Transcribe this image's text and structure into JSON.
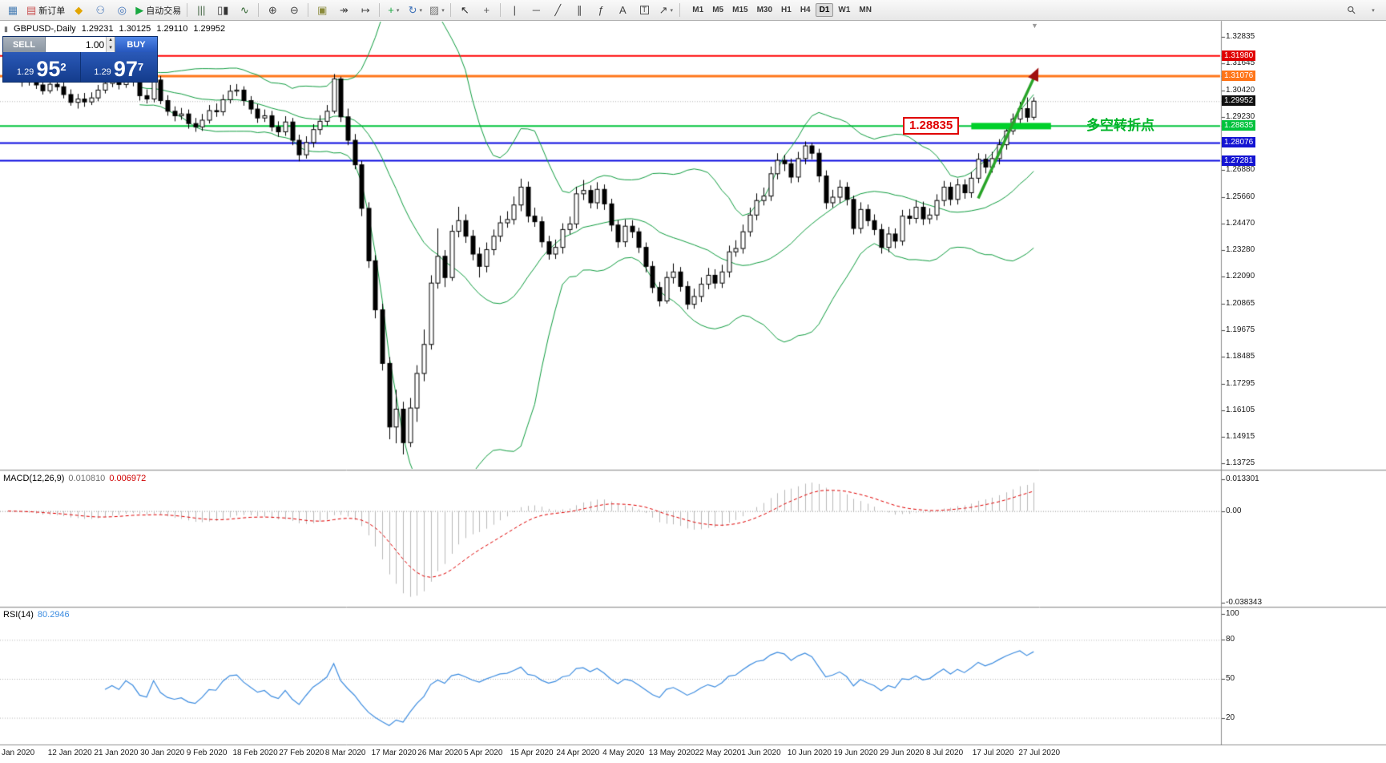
{
  "toolbar": {
    "items": [
      {
        "name": "new-chart-button",
        "glyph": "▦",
        "color": "#4a7fb5"
      },
      {
        "name": "new-order-button",
        "glyph": "▤",
        "color": "#c94f4f",
        "label": "新订单"
      },
      {
        "name": "metaeditor-button",
        "glyph": "◆",
        "color": "#e2a500"
      },
      {
        "name": "community-button",
        "glyph": "⚇",
        "color": "#3f72b8"
      },
      {
        "name": "options-button",
        "glyph": "◎",
        "color": "#3f72b8"
      },
      {
        "name": "autotrading-button",
        "glyph": "▶",
        "color": "#18a840",
        "label": "自动交易"
      },
      {
        "sep": true
      },
      {
        "name": "bar-chart-button",
        "glyph": "|||",
        "color": "#446644"
      },
      {
        "name": "candle-chart-button",
        "glyph": "▯▮",
        "color": "#333333"
      },
      {
        "name": "line-chart-button",
        "glyph": "∿",
        "color": "#336633"
      },
      {
        "sep": true
      },
      {
        "name": "zoom-in-button",
        "glyph": "⊕",
        "color": "#444444"
      },
      {
        "name": "zoom-out-button",
        "glyph": "⊖",
        "color": "#444444"
      },
      {
        "sep": true
      },
      {
        "name": "tile-windows-button",
        "glyph": "▣",
        "color": "#8a8a3a"
      },
      {
        "name": "auto-scroll-button",
        "glyph": "↠",
        "color": "#444444"
      },
      {
        "name": "chart-shift-button",
        "glyph": "↦",
        "color": "#444444"
      },
      {
        "sep": true
      },
      {
        "name": "indicators-button",
        "glyph": "+",
        "color": "#18a840",
        "caret": true
      },
      {
        "name": "periods-button",
        "glyph": "↻",
        "color": "#3f72b8",
        "caret": true
      },
      {
        "name": "templates-button",
        "glyph": "▨",
        "color": "#777777",
        "caret": true
      },
      {
        "sep": true
      },
      {
        "name": "cursor-button",
        "glyph": "↖",
        "color": "#222222"
      },
      {
        "name": "crosshair-button",
        "glyph": "+",
        "color": "#555555"
      },
      {
        "sep": true
      },
      {
        "name": "vertical-line-button",
        "glyph": "|",
        "color": "#444444"
      },
      {
        "name": "horizontal-line-button",
        "glyph": "─",
        "color": "#444444"
      },
      {
        "name": "trendline-button",
        "glyph": "╱",
        "color": "#444444"
      },
      {
        "name": "channel-button",
        "glyph": "∥",
        "color": "#444444"
      },
      {
        "name": "fibonacci-button",
        "glyph": "ƒ",
        "color": "#444444"
      },
      {
        "name": "text-button",
        "glyph": "A",
        "color": "#444444"
      },
      {
        "name": "label-button",
        "glyph": "T",
        "color": "#444444",
        "boxed": true
      },
      {
        "name": "arrows-button",
        "glyph": "↗",
        "color": "#444444",
        "caret": true
      },
      {
        "sep": true
      }
    ],
    "timeframes": [
      "M1",
      "M5",
      "M15",
      "M30",
      "H1",
      "H4",
      "D1",
      "W1",
      "MN"
    ],
    "active_timeframe": "D1",
    "search_glyph": "⚲",
    "dropdown_glyph": "▾"
  },
  "icons": {
    "spin_up": "▲",
    "spin_down": "▼",
    "chart_shift_marker": "▼"
  },
  "chart_header": {
    "title": "GBPUSD-,Daily",
    "open": "1.29231",
    "high": "1.30125",
    "low": "1.29110",
    "close": "1.29952",
    "mini_icon": "▮"
  },
  "trade_panel": {
    "sell_label": "SELL",
    "buy_label": "BU﻿Y",
    "volume": "1.00",
    "sell_price": {
      "base": "1.29",
      "big": "95",
      "pip": "2"
    },
    "buy_price": {
      "base": "1.29",
      "big": "97",
      "pip": "7"
    }
  },
  "price_scale": {
    "ticks": [
      "1.32835",
      "1.31645",
      "1.30420",
      "1.29230",
      "1.26880",
      "1.25660",
      "1.24470",
      "1.23280",
      "1.22090",
      "1.20865",
      "1.19675",
      "1.18485",
      "1.17295",
      "1.16105",
      "1.14915",
      "1.13725"
    ],
    "level_labels": [
      {
        "value": "1.31980",
        "bg": "#e00000"
      },
      {
        "value": "1.31076",
        "bg": "#ff7519"
      },
      {
        "value": "1.29952",
        "bg": "#101010"
      },
      {
        "value": "1.28835",
        "bg": "#00c33c"
      },
      {
        "value": "1.28076",
        "bg": "#1414d2"
      },
      {
        "value": "1.27281",
        "bg": "#1414d2"
      }
    ]
  },
  "levels": [
    {
      "price": 1.3198,
      "color": "#ff0000",
      "width": 2
    },
    {
      "price": 1.31076,
      "color": "#ff7519",
      "width": 3
    },
    {
      "price": 1.28835,
      "color": "#00c33c",
      "width": 2
    },
    {
      "price": 1.28076,
      "color": "#0a0adf",
      "width": 2
    },
    {
      "price": 1.27281,
      "color": "#0a0adf",
      "width": 2
    }
  ],
  "bid_line": {
    "price": 1.29952,
    "color": "#b4b4b4"
  },
  "annotations": {
    "price_note": {
      "text": "1.28835",
      "color": "#e00000"
    },
    "zone_bar": {
      "price": 1.28835,
      "from_index": 139,
      "to_index": 150.5,
      "color": "#00d02a",
      "thickness": 8
    },
    "note_text": {
      "text": "多空转折点",
      "color": "#00b428"
    },
    "trend_arrow": {
      "from": {
        "index": 140,
        "price": 1.256
      },
      "to": {
        "index": 148.7,
        "price": 1.3145
      },
      "color": "#28a428",
      "head_color": "#a01010"
    }
  },
  "indicators": {
    "macd": {
      "label": "MACD(12,26,9)",
      "value_main": "0.010810",
      "value_signal": "0.006972",
      "scale": [
        "0.013301",
        "0.00",
        "-0.038343"
      ],
      "ylim": [
        -0.038343,
        0.013301
      ],
      "fast": 12,
      "slow": 26,
      "signal": 9,
      "bar_color": "#b9b9b9",
      "signal_color": "#e00000"
    },
    "rsi": {
      "label": "RSI(14)",
      "value": "80.2946",
      "scale": [
        "100",
        "80",
        "50",
        "20"
      ],
      "levels": [
        80,
        50,
        20
      ],
      "period": 14,
      "line_color": "#3c8ce0"
    }
  },
  "x_axis": {
    "labels": [
      "Jan 2020",
      "12 Jan 2020",
      "21 Jan 2020",
      "30 Jan 2020",
      "9 Feb 2020",
      "18 Feb 2020",
      "27 Feb 2020",
      "8 Mar 2020",
      "17 Mar 2020",
      "26 Mar 2020",
      "5 Apr 2020",
      "15 Apr 2020",
      "24 Apr 2020",
      "4 May 2020",
      "13 May 2020",
      "22 May 2020",
      "1 Jun 2020",
      "10 Jun 2020",
      "19 Jun 2020",
      "29 Jun 2020",
      "8 Jul 2020",
      "17 Jul 2020",
      "27 Jul 2020"
    ]
  },
  "chart_data": {
    "type": "candlestick",
    "symbol": "GBPUSD-",
    "timeframe": "Daily",
    "ylim": [
      1.13725,
      1.32835
    ],
    "bollinger": {
      "period": 20,
      "deviation": 2,
      "color": "#0f9d3f"
    },
    "candles": [
      [
        1.3165,
        1.318,
        1.3115,
        1.313
      ],
      [
        1.313,
        1.3152,
        1.3085,
        1.3102
      ],
      [
        1.3102,
        1.3125,
        1.306,
        1.3082
      ],
      [
        1.3082,
        1.312,
        1.3065,
        1.3095
      ],
      [
        1.3095,
        1.3112,
        1.305,
        1.3068
      ],
      [
        1.3068,
        1.309,
        1.3025,
        1.3042
      ],
      [
        1.3042,
        1.3095,
        1.303,
        1.3071
      ],
      [
        1.3071,
        1.3098,
        1.3042,
        1.306
      ],
      [
        1.306,
        1.3082,
        1.3008,
        1.3025
      ],
      [
        1.3025,
        1.3048,
        1.2975,
        1.299
      ],
      [
        1.299,
        1.3028,
        1.2962,
        1.3005
      ],
      [
        1.3005,
        1.3032,
        1.297,
        1.2992
      ],
      [
        1.2992,
        1.3035,
        1.2978,
        1.301
      ],
      [
        1.301,
        1.3068,
        1.2995,
        1.3045
      ],
      [
        1.3045,
        1.3098,
        1.303,
        1.3075
      ],
      [
        1.3075,
        1.3118,
        1.3058,
        1.3092
      ],
      [
        1.3092,
        1.3108,
        1.3048,
        1.307
      ],
      [
        1.307,
        1.3172,
        1.3055,
        1.311
      ],
      [
        1.311,
        1.3135,
        1.3062,
        1.3085
      ],
      [
        1.3085,
        1.3102,
        1.2998,
        1.302
      ],
      [
        1.302,
        1.3048,
        1.2985,
        1.3005
      ],
      [
        1.3005,
        1.3128,
        1.299,
        1.309
      ],
      [
        1.309,
        1.3108,
        1.2982,
        1.2998
      ],
      [
        1.2998,
        1.3022,
        1.293,
        1.295
      ],
      [
        1.295,
        1.2972,
        1.2905,
        1.293
      ],
      [
        1.293,
        1.2965,
        1.2912,
        1.2938
      ],
      [
        1.2938,
        1.2958,
        1.2872,
        1.2895
      ],
      [
        1.2895,
        1.292,
        1.2858,
        1.288
      ],
      [
        1.288,
        1.2938,
        1.2862,
        1.291
      ],
      [
        1.291,
        1.2978,
        1.2895,
        1.2953
      ],
      [
        1.2953,
        1.2985,
        1.2925,
        1.2948
      ],
      [
        1.2948,
        1.3025,
        1.293,
        1.3002
      ],
      [
        1.3002,
        1.3068,
        1.2985,
        1.304
      ],
      [
        1.304,
        1.3072,
        1.3018,
        1.3045
      ],
      [
        1.3045,
        1.3062,
        1.2975,
        1.2998
      ],
      [
        1.2998,
        1.3018,
        1.2938,
        1.296
      ],
      [
        1.296,
        1.2982,
        1.2898,
        1.292
      ],
      [
        1.292,
        1.2958,
        1.2902,
        1.293
      ],
      [
        1.293,
        1.2952,
        1.286,
        1.288
      ],
      [
        1.288,
        1.2905,
        1.2836,
        1.2858
      ],
      [
        1.2858,
        1.2928,
        1.284,
        1.2902
      ],
      [
        1.2902,
        1.292,
        1.2798,
        1.282
      ],
      [
        1.282,
        1.2845,
        1.2726,
        1.2755
      ],
      [
        1.2755,
        1.2838,
        1.2738,
        1.281
      ],
      [
        1.281,
        1.2892,
        1.2788,
        1.2868
      ],
      [
        1.2868,
        1.2932,
        1.2845,
        1.2905
      ],
      [
        1.2905,
        1.2978,
        1.2885,
        1.295
      ],
      [
        1.295,
        1.3117,
        1.294,
        1.3095
      ],
      [
        1.3095,
        1.3105,
        1.2902,
        1.2925
      ],
      [
        1.2925,
        1.2962,
        1.2798,
        1.282
      ],
      [
        1.282,
        1.2848,
        1.269,
        1.271
      ],
      [
        1.271,
        1.2728,
        1.248,
        1.2515
      ],
      [
        1.2515,
        1.2542,
        1.2248,
        1.228
      ],
      [
        1.228,
        1.2305,
        1.2022,
        1.206
      ],
      [
        1.206,
        1.2088,
        1.1788,
        1.182
      ],
      [
        1.182,
        1.1848,
        1.148,
        1.1535
      ],
      [
        1.1535,
        1.1702,
        1.1462,
        1.1615
      ],
      [
        1.1615,
        1.1648,
        1.1412,
        1.1465
      ],
      [
        1.1465,
        1.1665,
        1.1445,
        1.162
      ],
      [
        1.162,
        1.1812,
        1.1558,
        1.1775
      ],
      [
        1.1775,
        1.1972,
        1.174,
        1.1905
      ],
      [
        1.1905,
        1.2215,
        1.1882,
        1.218
      ],
      [
        1.218,
        1.2425,
        1.2155,
        1.23
      ],
      [
        1.23,
        1.2328,
        1.2162,
        1.2205
      ],
      [
        1.2205,
        1.244,
        1.219,
        1.2412
      ],
      [
        1.2412,
        1.2522,
        1.2385,
        1.246
      ],
      [
        1.246,
        1.2488,
        1.236,
        1.239
      ],
      [
        1.239,
        1.2418,
        1.2282,
        1.231
      ],
      [
        1.231,
        1.234,
        1.2205,
        1.2255
      ],
      [
        1.2255,
        1.2362,
        1.2228,
        1.233
      ],
      [
        1.233,
        1.242,
        1.2305,
        1.239
      ],
      [
        1.239,
        1.2482,
        1.2365,
        1.245
      ],
      [
        1.245,
        1.2502,
        1.2428,
        1.2465
      ],
      [
        1.2465,
        1.2568,
        1.2442,
        1.253
      ],
      [
        1.253,
        1.2648,
        1.2502,
        1.261
      ],
      [
        1.261,
        1.2635,
        1.2452,
        1.248
      ],
      [
        1.248,
        1.2518,
        1.2432,
        1.2455
      ],
      [
        1.2455,
        1.2478,
        1.234,
        1.2365
      ],
      [
        1.2365,
        1.2392,
        1.2285,
        1.231
      ],
      [
        1.231,
        1.2375,
        1.2288,
        1.234
      ],
      [
        1.234,
        1.2448,
        1.2312,
        1.242
      ],
      [
        1.242,
        1.2478,
        1.2398,
        1.2445
      ],
      [
        1.2445,
        1.2612,
        1.2425,
        1.258
      ],
      [
        1.258,
        1.2642,
        1.2552,
        1.2595
      ],
      [
        1.2595,
        1.2618,
        1.2515,
        1.254
      ],
      [
        1.254,
        1.2632,
        1.2512,
        1.26
      ],
      [
        1.26,
        1.2622,
        1.2508,
        1.2535
      ],
      [
        1.2535,
        1.2558,
        1.2412,
        1.244
      ],
      [
        1.244,
        1.2462,
        1.2338,
        1.2365
      ],
      [
        1.2365,
        1.2465,
        1.2342,
        1.2435
      ],
      [
        1.2435,
        1.2462,
        1.2382,
        1.241
      ],
      [
        1.241,
        1.2428,
        1.2315,
        1.234
      ],
      [
        1.234,
        1.2362,
        1.2228,
        1.2255
      ],
      [
        1.2255,
        1.2278,
        1.2135,
        1.216
      ],
      [
        1.216,
        1.2185,
        1.2075,
        1.21
      ],
      [
        1.21,
        1.2232,
        1.2088,
        1.2205
      ],
      [
        1.2205,
        1.2268,
        1.2178,
        1.223
      ],
      [
        1.223,
        1.2252,
        1.2142,
        1.2165
      ],
      [
        1.2165,
        1.2188,
        1.2062,
        1.2085
      ],
      [
        1.2085,
        1.2155,
        1.2065,
        1.212
      ],
      [
        1.212,
        1.2205,
        1.2095,
        1.2175
      ],
      [
        1.2175,
        1.2248,
        1.2152,
        1.2215
      ],
      [
        1.2215,
        1.2242,
        1.2155,
        1.218
      ],
      [
        1.218,
        1.2262,
        1.2158,
        1.223
      ],
      [
        1.223,
        1.2348,
        1.2205,
        1.232
      ],
      [
        1.232,
        1.2372,
        1.2298,
        1.2335
      ],
      [
        1.2335,
        1.2442,
        1.2312,
        1.241
      ],
      [
        1.241,
        1.2518,
        1.2388,
        1.2485
      ],
      [
        1.2485,
        1.2582,
        1.2462,
        1.255
      ],
      [
        1.255,
        1.2608,
        1.2528,
        1.257
      ],
      [
        1.257,
        1.2702,
        1.2548,
        1.267
      ],
      [
        1.267,
        1.2762,
        1.2645,
        1.273
      ],
      [
        1.273,
        1.2755,
        1.2682,
        1.2715
      ],
      [
        1.2715,
        1.2738,
        1.2628,
        1.2655
      ],
      [
        1.2655,
        1.2768,
        1.2632,
        1.2738
      ],
      [
        1.2738,
        1.2815,
        1.2712,
        1.2795
      ],
      [
        1.2795,
        1.2808,
        1.2735,
        1.2762
      ],
      [
        1.2762,
        1.2782,
        1.2632,
        1.266
      ],
      [
        1.266,
        1.2685,
        1.2512,
        1.254
      ],
      [
        1.254,
        1.2598,
        1.2518,
        1.2565
      ],
      [
        1.2565,
        1.2642,
        1.2538,
        1.261
      ],
      [
        1.261,
        1.2632,
        1.2528,
        1.2555
      ],
      [
        1.2555,
        1.2572,
        1.2398,
        1.2425
      ],
      [
        1.2425,
        1.2542,
        1.2402,
        1.251
      ],
      [
        1.251,
        1.2532,
        1.2435,
        1.246
      ],
      [
        1.246,
        1.2488,
        1.2395,
        1.242
      ],
      [
        1.242,
        1.2445,
        1.2312,
        1.234
      ],
      [
        1.234,
        1.2432,
        1.2318,
        1.24
      ],
      [
        1.24,
        1.2425,
        1.2336,
        1.2368
      ],
      [
        1.2368,
        1.2508,
        1.2348,
        1.248
      ],
      [
        1.248,
        1.2512,
        1.2442,
        1.247
      ],
      [
        1.247,
        1.2552,
        1.2448,
        1.252
      ],
      [
        1.252,
        1.2545,
        1.244,
        1.2468
      ],
      [
        1.2468,
        1.2515,
        1.2445,
        1.2485
      ],
      [
        1.2485,
        1.2578,
        1.2462,
        1.255
      ],
      [
        1.255,
        1.2638,
        1.2525,
        1.261
      ],
      [
        1.261,
        1.2632,
        1.2528,
        1.2555
      ],
      [
        1.2555,
        1.2648,
        1.2532,
        1.262
      ],
      [
        1.262,
        1.2645,
        1.2558,
        1.2585
      ],
      [
        1.2585,
        1.2678,
        1.2562,
        1.265
      ],
      [
        1.265,
        1.2762,
        1.2628,
        1.2735
      ],
      [
        1.2735,
        1.2758,
        1.2672,
        1.27
      ],
      [
        1.27,
        1.2768,
        1.2675,
        1.2738
      ],
      [
        1.2738,
        1.2825,
        1.2712,
        1.28
      ],
      [
        1.28,
        1.2888,
        1.2778,
        1.2862
      ],
      [
        1.2862,
        1.294,
        1.2845,
        1.2915
      ],
      [
        1.2915,
        1.2992,
        1.2895,
        1.2962
      ],
      [
        1.2962,
        1.3012,
        1.2902,
        1.2923
      ],
      [
        1.29231,
        1.30125,
        1.2911,
        1.29952
      ]
    ]
  }
}
